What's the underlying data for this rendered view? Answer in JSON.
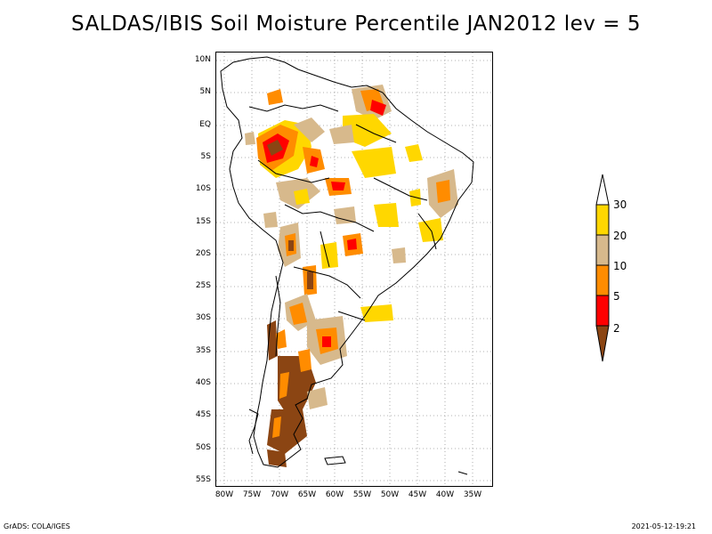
{
  "title": "SALDAS/IBIS Soil Moisture Percentile JAN2012 lev = 5",
  "lat_labels": [
    "10N",
    "5N",
    "EQ",
    "5S",
    "10S",
    "15S",
    "20S",
    "25S",
    "30S",
    "35S",
    "40S",
    "45S",
    "50S",
    "55S"
  ],
  "lon_labels": [
    "80W",
    "75W",
    "70W",
    "65W",
    "60W",
    "55W",
    "50W",
    "45W",
    "40W",
    "35W"
  ],
  "legend": {
    "labels": [
      "30",
      "20",
      "10",
      "5",
      "2"
    ],
    "colors": [
      "#ffd700",
      "#d7b98c",
      "#ff8c00",
      "#ff0000",
      "#8b4513"
    ]
  },
  "footer": {
    "left": "GrADS: COLA/IGES",
    "right": "2021-05-12-19:21"
  }
}
